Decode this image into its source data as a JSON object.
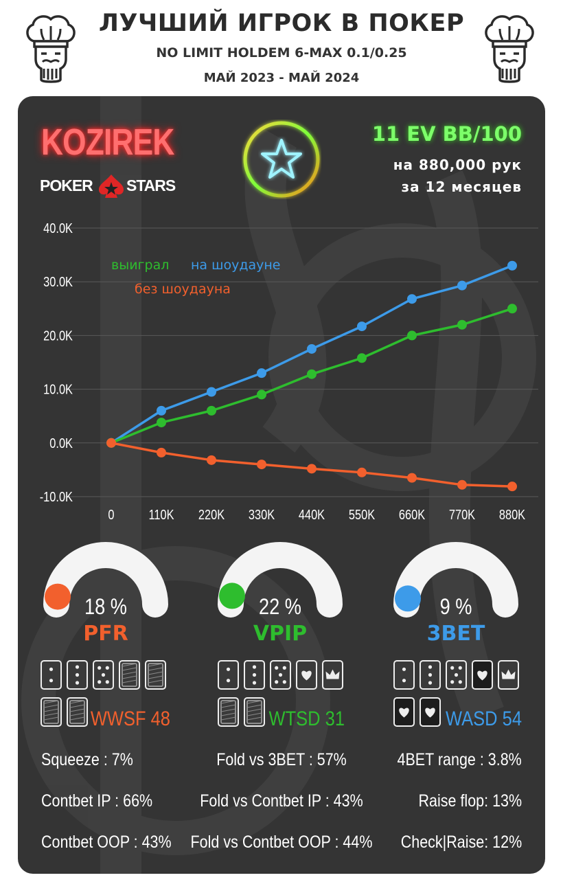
{
  "header": {
    "title": "ЛУЧШИЙ ИГРОК В ПОКЕР",
    "subtitle": "NO LIMIT HOLDEM 6-MAX 0.1/0.25",
    "period": "МАЙ 2023 - МАЙ 2024"
  },
  "player": {
    "name": "KOZIREK",
    "site_left": "POKER",
    "site_right": "STARS",
    "winrate": "11 EV BB/100",
    "hands": "на 880,000 рук",
    "period": "за  12 месяцев"
  },
  "colors": {
    "green": "#2ebd2e",
    "blue": "#3d9be9",
    "orange": "#f2602d",
    "panel": "#343434"
  },
  "chart_data": {
    "type": "line",
    "x": [
      "0",
      "110K",
      "220K",
      "330K",
      "440K",
      "550K",
      "660K",
      "770K",
      "880K"
    ],
    "ylim": [
      -10000,
      40000
    ],
    "yticks": [
      "40.0K",
      "30.0K",
      "20.0K",
      "10.0K",
      "0.0K",
      "-10.0K"
    ],
    "ytick_values": [
      40000,
      30000,
      20000,
      10000,
      0,
      -10000
    ],
    "legend": {
      "won_label": "выиграл",
      "showdown_label": "на шоудауне",
      "nonshowdown_label": "без шоудауна"
    },
    "series": [
      {
        "color": "#3d9be9",
        "values": [
          0,
          6000,
          9500,
          13000,
          17500,
          21700,
          26800,
          29300,
          33000
        ]
      },
      {
        "color": "#2ebd2e",
        "values": [
          0,
          3800,
          6000,
          9000,
          12800,
          15800,
          20000,
          22000,
          25000
        ]
      },
      {
        "color": "#f2602d",
        "values": [
          0,
          -1800,
          -3200,
          -4000,
          -4800,
          -5500,
          -6500,
          -7800,
          -8100
        ]
      }
    ]
  },
  "gauges": [
    {
      "value": 18,
      "text": "18 %",
      "label": "PFR",
      "color": "#f2602d"
    },
    {
      "value": 22,
      "text": "22 %",
      "label": "VPIP",
      "color": "#2ebd2e"
    },
    {
      "value": 9,
      "text": "9 %",
      "label": "3BET",
      "color": "#3d9be9"
    }
  ],
  "card_groups": [
    {
      "stat": "WWSF 48",
      "color": "#f2602d",
      "row1": [
        "two",
        "three",
        "five",
        "back",
        "back"
      ],
      "row2": [
        "back",
        "back"
      ]
    },
    {
      "stat": "WTSD 31",
      "color": "#2ebd2e",
      "row1": [
        "two",
        "three",
        "five",
        "heart",
        "crown"
      ],
      "row2": [
        "back",
        "back"
      ]
    },
    {
      "stat": "WASD 54",
      "color": "#3d9be9",
      "row1": [
        "two",
        "three",
        "five",
        "heart-dark",
        "crown"
      ],
      "row2": [
        "heart-dark",
        "heart-dark"
      ]
    }
  ],
  "stats": {
    "squeeze": "Squeeze : 7%",
    "fold_vs_3bet": "Fold vs 3BET : 57%",
    "fourbet_range": "4BET range : 3.8%",
    "contbet_ip": "Contbet IP : 66%",
    "fold_vs_contbet_ip": "Fold vs Contbet IP : 43%",
    "raise_flop": "Raise flop: 13%",
    "contbet_oop": "Contbet OOP : 43%",
    "fold_vs_contbet_oop": "Fold vs Contbet OOP : 44%",
    "check_raise": "Check|Raise: 12%"
  }
}
